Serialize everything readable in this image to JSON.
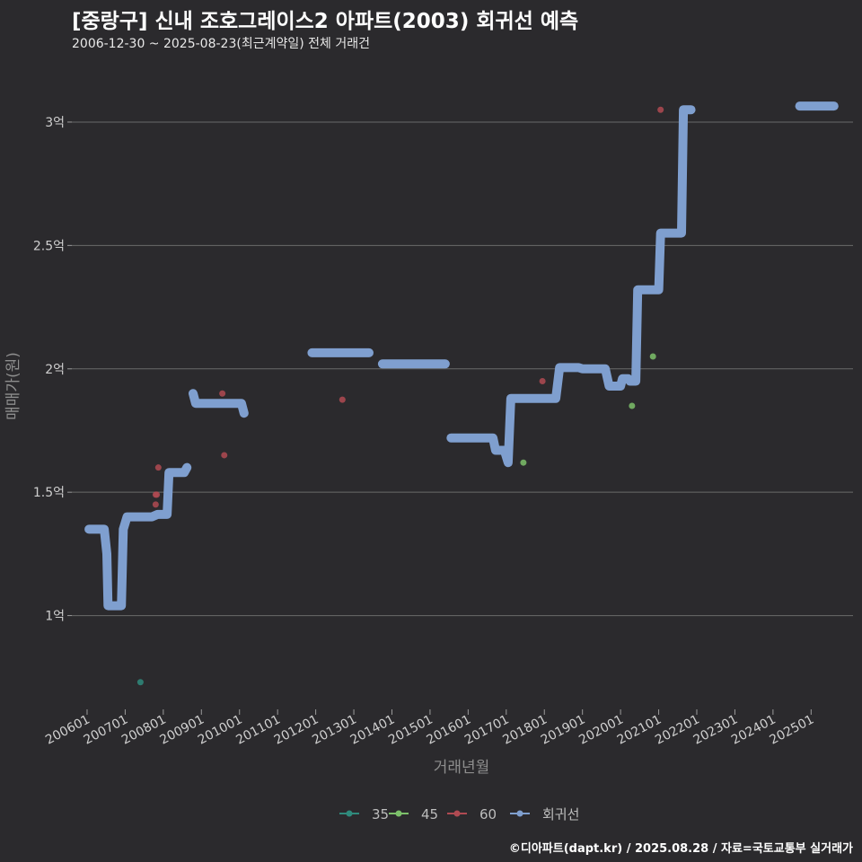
{
  "header": {
    "title": "[중랑구] 신내 조호그레이스2 아파트(2003) 회귀선 예측",
    "subtitle": "2006-12-30 ~ 2025-08-23(최근계약일) 전체 거래건"
  },
  "caption": "©디아파트(dapt.kr) / 2025.08.28 / 자료=국토교통부 실거래가",
  "colors": {
    "background": "#2b2a2d",
    "grid": "#6a6a6a",
    "s35": "#2f8a7c",
    "s45": "#7cc06a",
    "s60": "#b04a52",
    "regression": "#7f9fcf"
  },
  "chart_data": {
    "type": "line+scatter",
    "xlabel": "거래년월",
    "ylabel": "매매가(원)",
    "xlim": [
      2005.6,
      2026.1
    ],
    "ylim": [
      0.62,
      3.24
    ],
    "x_ticks": [
      {
        "value": 2006.0,
        "label": "200601"
      },
      {
        "value": 2007.0,
        "label": "200701"
      },
      {
        "value": 2008.0,
        "label": "200801"
      },
      {
        "value": 2009.0,
        "label": "200901"
      },
      {
        "value": 2010.0,
        "label": "201001"
      },
      {
        "value": 2011.0,
        "label": "201101"
      },
      {
        "value": 2012.0,
        "label": "201201"
      },
      {
        "value": 2013.0,
        "label": "201301"
      },
      {
        "value": 2014.0,
        "label": "201401"
      },
      {
        "value": 2015.0,
        "label": "201501"
      },
      {
        "value": 2016.0,
        "label": "201601"
      },
      {
        "value": 2017.0,
        "label": "201701"
      },
      {
        "value": 2018.0,
        "label": "201801"
      },
      {
        "value": 2019.0,
        "label": "201901"
      },
      {
        "value": 2020.0,
        "label": "202001"
      },
      {
        "value": 2021.0,
        "label": "202101"
      },
      {
        "value": 2022.0,
        "label": "202201"
      },
      {
        "value": 2023.0,
        "label": "202301"
      },
      {
        "value": 2024.0,
        "label": "202401"
      },
      {
        "value": 2025.0,
        "label": "202501"
      }
    ],
    "y_ticks": [
      {
        "value": 1.0,
        "label": "1억"
      },
      {
        "value": 1.5,
        "label": "1.5억"
      },
      {
        "value": 2.0,
        "label": "2억"
      },
      {
        "value": 2.5,
        "label": "2.5억"
      },
      {
        "value": 3.0,
        "label": "3억"
      }
    ],
    "legend": {
      "position": "bottom",
      "items": [
        {
          "key": "s35",
          "label": "35"
        },
        {
          "key": "s45",
          "label": "45"
        },
        {
          "key": "s60",
          "label": "60"
        },
        {
          "key": "regression",
          "label": "회귀선"
        }
      ]
    },
    "scatter": [
      {
        "series": "s35",
        "x": 2007.4,
        "y": 0.73
      },
      {
        "series": "s60",
        "x": 2007.8,
        "y": 1.45
      },
      {
        "series": "s60",
        "x": 2007.8,
        "y": 1.49
      },
      {
        "series": "s60",
        "x": 2007.83,
        "y": 1.49
      },
      {
        "series": "s60",
        "x": 2007.87,
        "y": 1.6
      },
      {
        "series": "s60",
        "x": 2009.55,
        "y": 1.9
      },
      {
        "series": "s60",
        "x": 2009.6,
        "y": 1.65
      },
      {
        "series": "s60",
        "x": 2012.7,
        "y": 1.875
      },
      {
        "series": "s45",
        "x": 2017.45,
        "y": 1.62
      },
      {
        "series": "s60",
        "x": 2017.95,
        "y": 1.95
      },
      {
        "series": "s45",
        "x": 2020.3,
        "y": 1.85
      },
      {
        "series": "s45",
        "x": 2020.85,
        "y": 2.05
      },
      {
        "series": "s60",
        "x": 2021.05,
        "y": 3.05
      }
    ],
    "regression_segments": [
      [
        [
          2006.05,
          1.35
        ],
        [
          2006.45,
          1.35
        ],
        [
          2006.52,
          1.25
        ],
        [
          2006.55,
          1.04
        ],
        [
          2006.9,
          1.04
        ],
        [
          2006.95,
          1.35
        ],
        [
          2007.05,
          1.4
        ],
        [
          2007.7,
          1.4
        ],
        [
          2007.85,
          1.41
        ],
        [
          2008.1,
          1.41
        ],
        [
          2008.15,
          1.58
        ],
        [
          2008.55,
          1.58
        ],
        [
          2008.62,
          1.6
        ]
      ],
      [
        [
          2008.78,
          1.9
        ],
        [
          2008.85,
          1.86
        ],
        [
          2010.05,
          1.86
        ],
        [
          2010.12,
          1.82
        ]
      ],
      [
        [
          2011.9,
          2.065
        ],
        [
          2013.4,
          2.065
        ]
      ],
      [
        [
          2013.75,
          2.02
        ],
        [
          2015.4,
          2.02
        ]
      ],
      [
        [
          2015.55,
          1.72
        ],
        [
          2016.65,
          1.72
        ],
        [
          2016.72,
          1.67
        ],
        [
          2016.95,
          1.67
        ],
        [
          2017.05,
          1.62
        ],
        [
          2017.12,
          1.88
        ],
        [
          2018.3,
          1.88
        ],
        [
          2018.4,
          2.005
        ],
        [
          2018.9,
          2.005
        ],
        [
          2019.0,
          2.0
        ],
        [
          2019.6,
          2.0
        ],
        [
          2019.7,
          1.93
        ],
        [
          2020.0,
          1.93
        ],
        [
          2020.05,
          1.96
        ],
        [
          2020.2,
          1.96
        ],
        [
          2020.25,
          1.95
        ],
        [
          2020.4,
          1.95
        ],
        [
          2020.45,
          2.32
        ],
        [
          2021.0,
          2.32
        ],
        [
          2021.05,
          2.55
        ],
        [
          2021.6,
          2.55
        ],
        [
          2021.65,
          3.05
        ],
        [
          2021.85,
          3.05
        ]
      ],
      [
        [
          2024.7,
          3.065
        ],
        [
          2025.6,
          3.065
        ]
      ]
    ]
  }
}
